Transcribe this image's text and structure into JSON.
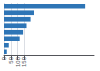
{
  "chart_data": {
    "type": "bar",
    "orientation": "horizontal",
    "values": [
      595,
      220,
      195,
      165,
      140,
      115,
      35,
      20
    ],
    "color": "#2e75b6",
    "xlim": [
      0,
      660
    ],
    "xticks": [
      0,
      50,
      100,
      150
    ],
    "grid": true,
    "tick_labels": "x"
  }
}
